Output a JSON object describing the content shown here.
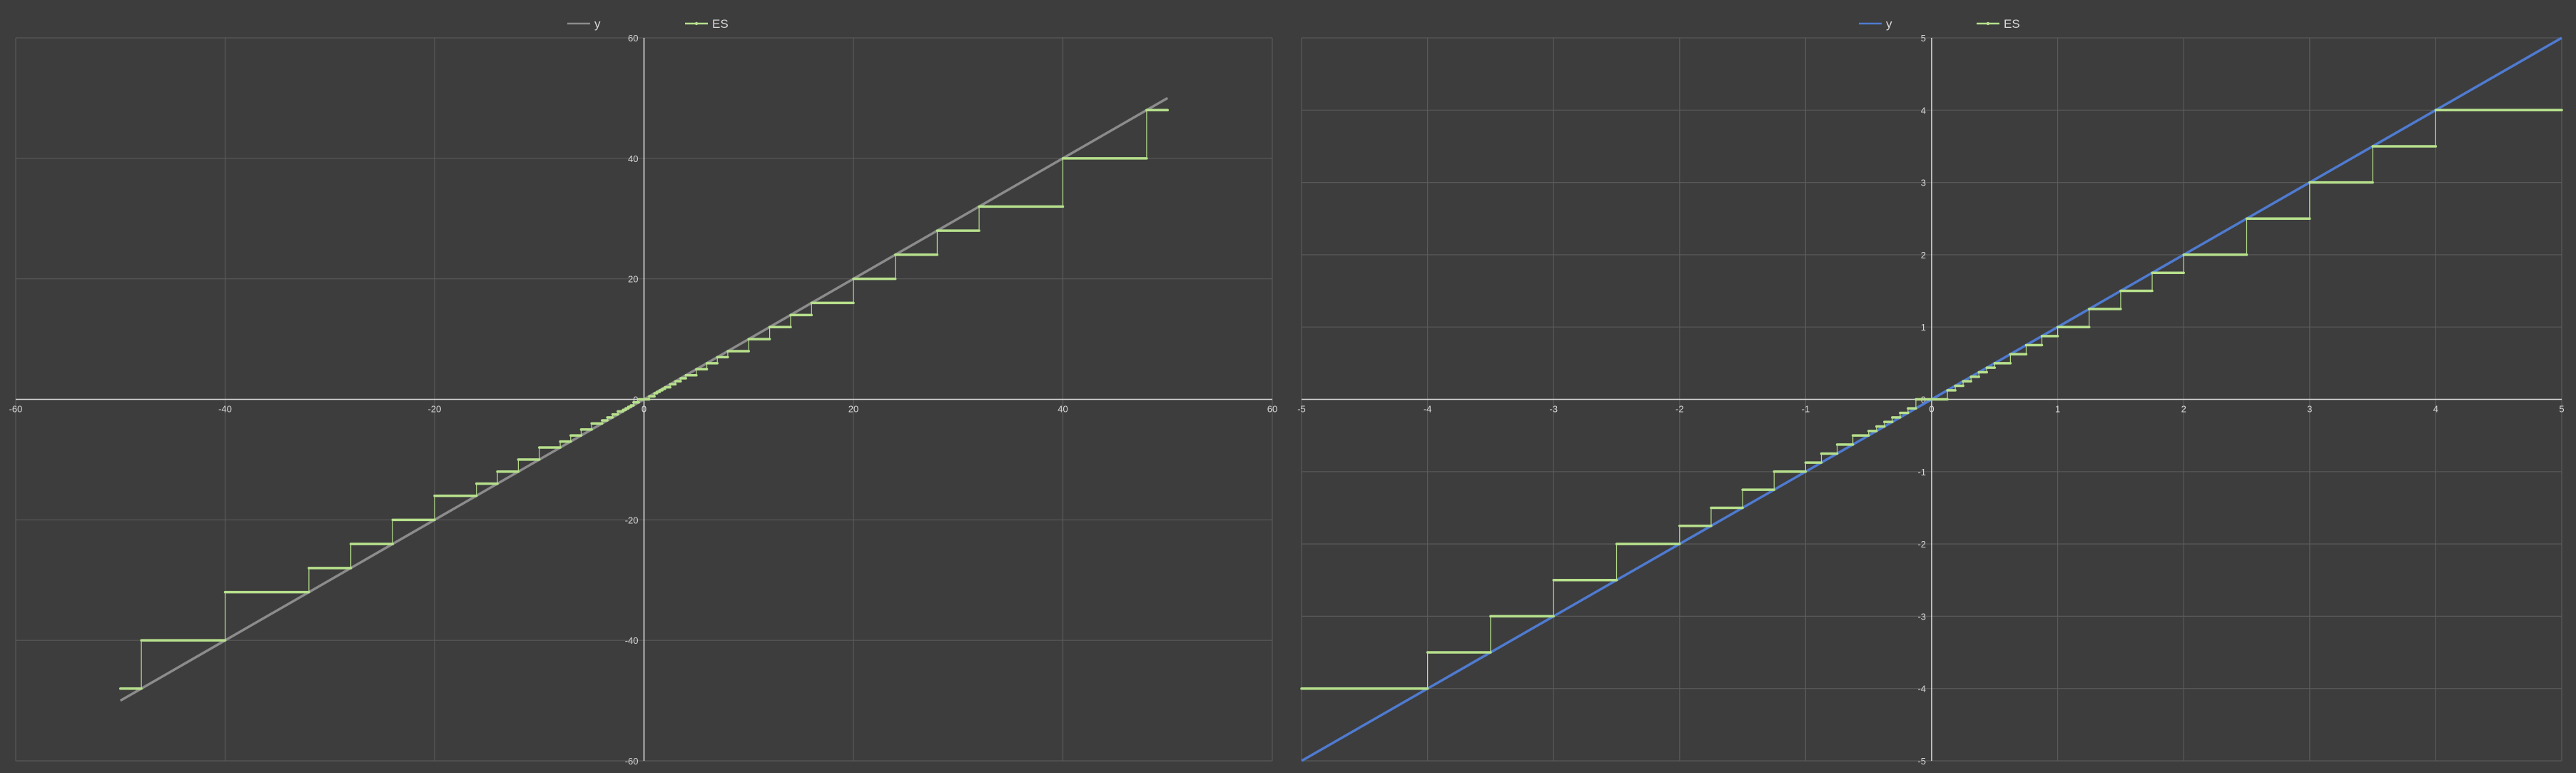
{
  "colors": {
    "background": "#3d3d3d",
    "grid": "#5a5a5a",
    "axis": "#d9d9d9",
    "y_left": "#8c8c8c",
    "y_right": "#4f7bd1",
    "es": "#b7e08c"
  },
  "chart_data": [
    {
      "type": "line",
      "legend": [
        "y",
        "ES"
      ],
      "legend_placement": "top-center",
      "grid": true,
      "xlim": [
        -60,
        60
      ],
      "ylim": [
        -60,
        60
      ],
      "xticks": [
        -60,
        -40,
        -20,
        0,
        20,
        40,
        60
      ],
      "yticks": [
        -60,
        -40,
        -20,
        0,
        20,
        40,
        60
      ],
      "xtick_labels": [
        "-60",
        "-40",
        "-20",
        "0",
        "20",
        "40",
        "60"
      ],
      "ytick_labels": [
        "-60",
        "-40",
        "-20",
        "0",
        "20",
        "40",
        "60"
      ],
      "series": [
        {
          "name": "y",
          "x": [
            -50,
            50
          ],
          "y": [
            -50,
            50
          ]
        },
        {
          "name": "ES",
          "type": "step",
          "steps": [
            [
              -50,
              -48
            ],
            [
              -48,
              -40
            ],
            [
              -40,
              -32
            ],
            [
              -32,
              -28
            ],
            [
              -28,
              -24
            ],
            [
              -24,
              -20
            ],
            [
              -20,
              -16
            ],
            [
              -16,
              -14
            ],
            [
              -14,
              -12
            ],
            [
              -12,
              -10
            ],
            [
              -10,
              -8
            ],
            [
              -8,
              -7
            ],
            [
              -7,
              -6
            ],
            [
              -6,
              -5
            ],
            [
              -5,
              -4
            ],
            [
              -4,
              -3.5
            ],
            [
              -3.5,
              -3
            ],
            [
              -3,
              -2.5
            ],
            [
              -2.5,
              -2
            ],
            [
              -2,
              -1.75
            ],
            [
              -1.75,
              -1.5
            ],
            [
              -1.5,
              -1.25
            ],
            [
              -1.25,
              -1
            ],
            [
              -1,
              -0.5
            ],
            [
              -0.5,
              0
            ],
            [
              0,
              0.5
            ],
            [
              0.5,
              1
            ],
            [
              1,
              1.25
            ],
            [
              1.25,
              1.5
            ],
            [
              1.5,
              1.75
            ],
            [
              1.75,
              2
            ],
            [
              2,
              2.5
            ],
            [
              2.5,
              3
            ],
            [
              3,
              3.5
            ],
            [
              3.5,
              4
            ],
            [
              4,
              5
            ],
            [
              5,
              6
            ],
            [
              6,
              7
            ],
            [
              7,
              8
            ],
            [
              8,
              10
            ],
            [
              10,
              12
            ],
            [
              12,
              14
            ],
            [
              14,
              16
            ],
            [
              16,
              20
            ],
            [
              20,
              24
            ],
            [
              24,
              28
            ],
            [
              28,
              32
            ],
            [
              32,
              40
            ],
            [
              40,
              48
            ],
            [
              48,
              50
            ]
          ],
          "values": [
            -48,
            -40,
            -32,
            -28,
            -24,
            -20,
            -16,
            -14,
            -12,
            -10,
            -8,
            -7,
            -6,
            -5,
            -4,
            -3.5,
            -3,
            -2.5,
            -2,
            -1.75,
            -1.5,
            -1.25,
            -1,
            -0.5,
            0,
            0,
            0.5,
            1,
            1.25,
            1.5,
            1.75,
            2,
            2.5,
            3,
            3.5,
            4,
            5,
            6,
            7,
            8,
            10,
            12,
            14,
            16,
            20,
            24,
            28,
            32,
            40,
            48
          ]
        }
      ]
    },
    {
      "type": "line",
      "legend": [
        "y",
        "ES"
      ],
      "legend_placement": "top-center",
      "grid": true,
      "xlim": [
        -5,
        5
      ],
      "ylim": [
        -5,
        5
      ],
      "xticks": [
        -5,
        -4,
        -3,
        -2,
        -1,
        0,
        1,
        2,
        3,
        4,
        5
      ],
      "yticks": [
        -5,
        -4,
        -3,
        -2,
        -1,
        0,
        1,
        2,
        3,
        4,
        5
      ],
      "xtick_labels": [
        "-5",
        "-4",
        "-3",
        "-2",
        "-1",
        "0",
        "1",
        "2",
        "3",
        "4",
        "5"
      ],
      "ytick_labels": [
        "-5",
        "-4",
        "-3",
        "-2",
        "-1",
        "0",
        "1",
        "2",
        "3",
        "4",
        "5"
      ],
      "series": [
        {
          "name": "y",
          "x": [
            -5,
            5
          ],
          "y": [
            -5,
            5
          ]
        },
        {
          "name": "ES",
          "type": "step",
          "steps": [
            [
              -5,
              -4
            ],
            [
              -4,
              -3.5
            ],
            [
              -3.5,
              -3
            ],
            [
              -3,
              -2.5
            ],
            [
              -2.5,
              -2
            ],
            [
              -2,
              -1.75
            ],
            [
              -1.75,
              -1.5
            ],
            [
              -1.5,
              -1.25
            ],
            [
              -1.25,
              -1
            ],
            [
              -1,
              -0.875
            ],
            [
              -0.875,
              -0.75
            ],
            [
              -0.75,
              -0.625
            ],
            [
              -0.625,
              -0.5
            ],
            [
              -0.5,
              -0.4375
            ],
            [
              -0.4375,
              -0.375
            ],
            [
              -0.375,
              -0.3125
            ],
            [
              -0.3125,
              -0.25
            ],
            [
              -0.25,
              -0.1875
            ],
            [
              -0.1875,
              -0.125
            ],
            [
              -0.125,
              0
            ],
            [
              0,
              0.125
            ],
            [
              0.125,
              0.1875
            ],
            [
              0.1875,
              0.25
            ],
            [
              0.25,
              0.3125
            ],
            [
              0.3125,
              0.375
            ],
            [
              0.375,
              0.4375
            ],
            [
              0.4375,
              0.5
            ],
            [
              0.5,
              0.625
            ],
            [
              0.625,
              0.75
            ],
            [
              0.75,
              0.875
            ],
            [
              0.875,
              1
            ],
            [
              1,
              1.25
            ],
            [
              1.25,
              1.5
            ],
            [
              1.5,
              1.75
            ],
            [
              1.75,
              2
            ],
            [
              2,
              2.5
            ],
            [
              2.5,
              3
            ],
            [
              3,
              3.5
            ],
            [
              3.5,
              4
            ],
            [
              4,
              5
            ]
          ],
          "values": [
            -4,
            -3.5,
            -3,
            -2.5,
            -2,
            -1.75,
            -1.5,
            -1.25,
            -1,
            -0.875,
            -0.75,
            -0.625,
            -0.5,
            -0.4375,
            -0.375,
            -0.3125,
            -0.25,
            -0.1875,
            -0.125,
            0,
            0,
            0.125,
            0.1875,
            0.25,
            0.3125,
            0.375,
            0.4375,
            0.5,
            0.625,
            0.75,
            0.875,
            1,
            1.25,
            1.5,
            1.75,
            2,
            2.5,
            3,
            3.5,
            4
          ]
        }
      ]
    }
  ]
}
